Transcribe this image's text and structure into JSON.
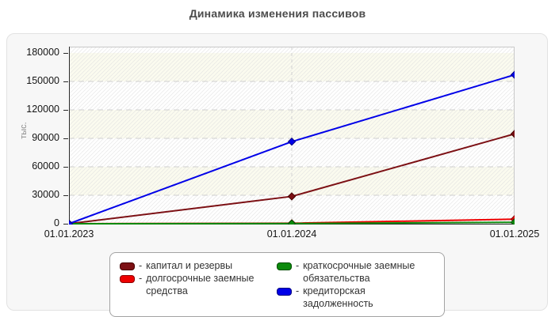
{
  "title": "Динамика изменения пассивов",
  "chart_data": {
    "type": "line",
    "title": "Динамика изменения пассивов",
    "ylabel": "тыс.",
    "x_labels": [
      "01.01.2023",
      "01.01.2024",
      "01.01.2025"
    ],
    "ylim": [
      0,
      180000
    ],
    "ytick_step": 30000,
    "grid": "dashed-horizontal-and-vertical",
    "legend_position": "bottom",
    "plot_background": {
      "band_color": "#fbfbef",
      "alt_band_color": "#ffffff",
      "hatch_color": "#dcdcdc"
    },
    "series": [
      {
        "name": "капитал и резервы",
        "color": "#7c1014",
        "edge": "#450000",
        "values": [
          0,
          28800,
          94700
        ]
      },
      {
        "name": "долгосрочные заемные средства",
        "color": "#ee0000",
        "edge": "#8b0000",
        "values": [
          0,
          500,
          4800
        ]
      },
      {
        "name": "краткосрочные заемные обязательства",
        "color": "#0c8a0c",
        "edge": "#004d00",
        "values": [
          0,
          200,
          1500
        ]
      },
      {
        "name": "кредиторская задолженность",
        "color": "#0000e8",
        "edge": "#000080",
        "values": [
          0,
          86500,
          157000
        ]
      }
    ]
  },
  "legend": {
    "dash": "-"
  }
}
